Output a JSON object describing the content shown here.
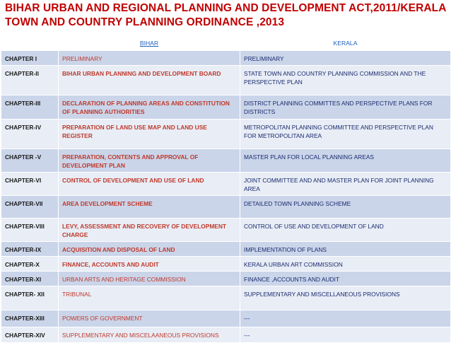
{
  "title": {
    "line1": "BIHAR URBAN AND REGIONAL PLANNING  AND DEVELOPMENT ACT,2011/KERALA",
    "line2": "TOWN AND COUNTRY PLANNING ORDINANCE ,2013"
  },
  "table": {
    "headers": [
      "",
      "BIHAR",
      "KERALA"
    ],
    "rows": [
      {
        "chapter": "CHAPTER I",
        "bihar": "PRELIMINARY",
        "kerala": "PRELIMINARY"
      },
      {
        "chapter": "CHAPTER-II",
        "bihar": "BIHAR URBAN PLANNING AND DEVELOPMENT BOARD",
        "kerala": "STATE TOWN AND COUNTRY PLANNING COMMISSION AND THE PERSPECTIVE PLAN"
      },
      {
        "chapter": "CHAPTER-III",
        "bihar": "DECLARATION OF PLANNING AREAS AND CONSTITUTION OF PLANNING AUTHORITIES",
        "kerala": "DISTRICT PLANNING COMMITTES AND PERSPECTIVE PLANS FOR DISTRICTS"
      },
      {
        "chapter": "CHAPTER-IV",
        "bihar": "PREPARATION OF LAND USE MAP AND LAND USE REGISTER",
        "kerala": "METROPOLITAN  PLANNING COMMITTEE AND PERSPECTIVE PLAN FOR METROPOLITAN AREA"
      },
      {
        "chapter": "CHAPTER -V",
        "bihar": "PREPARATION, CONTENTS AND APPROVAL OF DEVELOPMENT PLAN",
        "kerala": "MASTER PLAN FOR LOCAL PLANNING AREAS"
      },
      {
        "chapter": "CHAPTER-VI",
        "bihar": "CONTROL OF DEVELOPMENT AND USE OF LAND",
        "kerala": "JOINT COMMITTEE AND AND MASTER PLAN FOR JOINT PLANNING AREA"
      },
      {
        "chapter": "CHAPTER-VII",
        "bihar": "AREA DEVELOPMENT SCHEME",
        "kerala": "DETAILED TOWN PLANNING SCHEME"
      },
      {
        "chapter": "CHAPTER-VIII",
        "bihar": "LEVY, ASSESSMENT AND RECOVERY OF DEVELOPMENT CHARGE",
        "kerala": "CONTROL OF USE AND DEVELOPMENT OF LAND"
      },
      {
        "chapter": "CHAPTER-IX",
        "bihar": "ACQUISITION AND DISPOSAL OF LAND",
        "kerala": "IMPLEMENTATION OF PLANS"
      },
      {
        "chapter": "CHAPTER-X",
        "bihar": "FINANCE, ACCOUNTS AND AUDIT",
        "kerala": "KERALA URBAN ART COMMISSION"
      },
      {
        "chapter": "CHAPTER-XI",
        "bihar": "URBAN ARTS AND HERITAGE COMMISSION",
        "kerala": "FINANCE ,ACCOUNTS AND AUDIT"
      },
      {
        "chapter": "CHAPTER- XII",
        "bihar": "TRIBUNAL",
        "kerala": "SUPPLEMENTARY AND MISCELLANEOUS PROVISIONS"
      },
      {
        "chapter": "CHAPTER-XIII",
        "bihar": "POWERS OF GOVERNMENT",
        "kerala": "---"
      },
      {
        "chapter": "CHAPTER-XIV",
        "bihar": "SUPPLEMENTARY AND MISCELAANEOUS PROVISIONS",
        "kerala": "---"
      }
    ]
  },
  "colors": {
    "title": "#c00000",
    "header_text": "#1f5fbf",
    "row_dark": "#cad5ea",
    "row_light": "#e8edf6",
    "bihar_text": "#c0392b",
    "kerala_text": "#1a2a6c"
  }
}
